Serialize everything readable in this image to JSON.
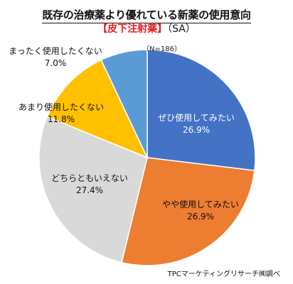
{
  "title": "既存の治療薬より優れている新薬の使用意向",
  "subtitle": "【皮下注射薬】",
  "subtitle_suffix": "（SA）",
  "sample_size": "（N=186）",
  "source": "TPCマーケティングリサーチ㈱調べ",
  "chart_data": {
    "type": "pie",
    "start_angle_deg": 0,
    "direction": "clockwise",
    "slices": [
      {
        "label": "ぜひ使用してみたい",
        "value": 26.9,
        "value_label": "26.9%",
        "color": "#4472C4",
        "text_color": "#ffffff"
      },
      {
        "label": "やや使用してみたい",
        "value": 26.9,
        "value_label": "26.9%",
        "color": "#ED7D31",
        "text_color": "#111111"
      },
      {
        "label": "どちらともいえない",
        "value": 27.4,
        "value_label": "27.4%",
        "color": "#D9D9D9",
        "text_color": "#111111"
      },
      {
        "label": "あまり使用したくない",
        "value": 11.8,
        "value_label": "11.8%",
        "color": "#FFC000",
        "text_color": "#111111"
      },
      {
        "label": "まったく使用したくない",
        "value": 7.0,
        "value_label": "7.0%",
        "color": "#5B9BD5",
        "text_color": "#111111"
      }
    ]
  }
}
